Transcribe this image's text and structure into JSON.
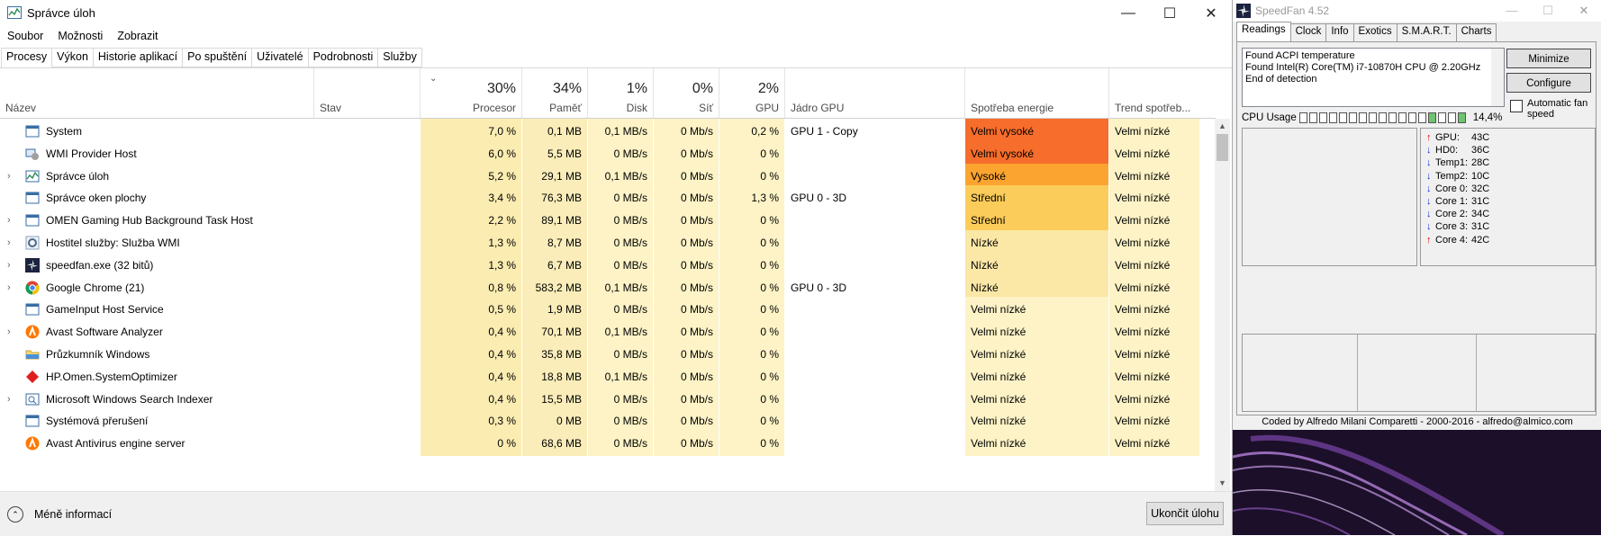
{
  "taskmanager": {
    "title": "Správce úloh",
    "menu": [
      "Soubor",
      "Možnosti",
      "Zobrazit"
    ],
    "tabs": [
      "Procesy",
      "Výkon",
      "Historie aplikací",
      "Po spuštění",
      "Uživatelé",
      "Podrobnosti",
      "Služby"
    ],
    "active_tab": "Procesy",
    "columns": {
      "name": "Název",
      "status": "Stav",
      "cpu": {
        "pct": "30%",
        "label": "Procesor"
      },
      "mem": {
        "pct": "34%",
        "label": "Paměť"
      },
      "disk": {
        "pct": "1%",
        "label": "Disk"
      },
      "net": {
        "pct": "0%",
        "label": "Síť"
      },
      "gpu": {
        "pct": "2%",
        "label": "GPU"
      },
      "gpu_engine": "Jádro GPU",
      "power": "Spotřeba energie",
      "power_trend": "Trend spotřeb..."
    },
    "rows": [
      {
        "expand": false,
        "icon": "system-icon",
        "name": "System",
        "cpu": "7,0 %",
        "mem": "0,1 MB",
        "disk": "0,1 MB/s",
        "net": "0 Mb/s",
        "gpu": "0,2 %",
        "engine": "GPU 1 - Copy",
        "power": "Velmi vysoké",
        "power_color": "#f76d2b",
        "trend": "Velmi nízké"
      },
      {
        "expand": false,
        "icon": "wmi-icon",
        "name": "WMI Provider Host",
        "cpu": "6,0 %",
        "mem": "5,5 MB",
        "disk": "0 MB/s",
        "net": "0 Mb/s",
        "gpu": "0 %",
        "engine": "",
        "power": "Velmi vysoké",
        "power_color": "#f76d2b",
        "trend": "Velmi nízké"
      },
      {
        "expand": true,
        "icon": "taskmanager-icon",
        "name": "Správce úloh",
        "cpu": "5,2 %",
        "mem": "29,1 MB",
        "disk": "0,1 MB/s",
        "net": "0 Mb/s",
        "gpu": "0 %",
        "engine": "",
        "power": "Vysoké",
        "power_color": "#fba430",
        "trend": "Velmi nízké"
      },
      {
        "expand": false,
        "icon": "window-icon",
        "name": "Správce oken plochy",
        "cpu": "3,4 %",
        "mem": "76,3 MB",
        "disk": "0 MB/s",
        "net": "0 Mb/s",
        "gpu": "1,3 %",
        "engine": "GPU 0 - 3D",
        "power": "Střední",
        "power_color": "#fccc5a",
        "trend": "Velmi nízké"
      },
      {
        "expand": true,
        "icon": "window-icon",
        "name": "OMEN Gaming Hub Background Task Host",
        "cpu": "2,2 %",
        "mem": "89,1 MB",
        "disk": "0 MB/s",
        "net": "0 Mb/s",
        "gpu": "0 %",
        "engine": "",
        "power": "Střední",
        "power_color": "#fccc5a",
        "trend": "Velmi nízké"
      },
      {
        "expand": true,
        "icon": "gear-icon",
        "name": "Hostitel služby: Služba WMI",
        "cpu": "1,3 %",
        "mem": "8,7 MB",
        "disk": "0 MB/s",
        "net": "0 Mb/s",
        "gpu": "0 %",
        "engine": "",
        "power": "Nízké",
        "power_color": "#fbe7a6",
        "trend": "Velmi nízké"
      },
      {
        "expand": true,
        "icon": "speedfan-icon",
        "name": "speedfan.exe (32 bitů)",
        "cpu": "1,3 %",
        "mem": "6,7 MB",
        "disk": "0 MB/s",
        "net": "0 Mb/s",
        "gpu": "0 %",
        "engine": "",
        "power": "Nízké",
        "power_color": "#fbe7a6",
        "trend": "Velmi nízké"
      },
      {
        "expand": true,
        "icon": "chrome-icon",
        "name": "Google Chrome (21)",
        "cpu": "0,8 %",
        "mem": "583,2 MB",
        "disk": "0,1 MB/s",
        "net": "0 Mb/s",
        "gpu": "0 %",
        "engine": "GPU 0 - 3D",
        "power": "Nízké",
        "power_color": "#fbe7a6",
        "trend": "Velmi nízké"
      },
      {
        "expand": false,
        "icon": "window-icon",
        "name": "GameInput Host Service",
        "cpu": "0,5 %",
        "mem": "1,9 MB",
        "disk": "0 MB/s",
        "net": "0 Mb/s",
        "gpu": "0 %",
        "engine": "",
        "power": "Velmi nízké",
        "power_color": "#fdf3c6",
        "trend": "Velmi nízké"
      },
      {
        "expand": true,
        "icon": "avast-icon",
        "name": "Avast Software Analyzer",
        "cpu": "0,4 %",
        "mem": "70,1 MB",
        "disk": "0,1 MB/s",
        "net": "0 Mb/s",
        "gpu": "0 %",
        "engine": "",
        "power": "Velmi nízké",
        "power_color": "#fdf3c6",
        "trend": "Velmi nízké"
      },
      {
        "expand": false,
        "icon": "folder-icon",
        "name": "Průzkumník Windows",
        "cpu": "0,4 %",
        "mem": "35,8 MB",
        "disk": "0 MB/s",
        "net": "0 Mb/s",
        "gpu": "0 %",
        "engine": "",
        "power": "Velmi nízké",
        "power_color": "#fdf3c6",
        "trend": "Velmi nízké"
      },
      {
        "expand": false,
        "icon": "omen-icon",
        "name": "HP.Omen.SystemOptimizer",
        "cpu": "0,4 %",
        "mem": "18,8 MB",
        "disk": "0,1 MB/s",
        "net": "0 Mb/s",
        "gpu": "0 %",
        "engine": "",
        "power": "Velmi nízké",
        "power_color": "#fdf3c6",
        "trend": "Velmi nízké"
      },
      {
        "expand": true,
        "icon": "search-indexer-icon",
        "name": "Microsoft Windows Search Indexer",
        "cpu": "0,4 %",
        "mem": "15,5 MB",
        "disk": "0 MB/s",
        "net": "0 Mb/s",
        "gpu": "0 %",
        "engine": "",
        "power": "Velmi nízké",
        "power_color": "#fdf3c6",
        "trend": "Velmi nízké"
      },
      {
        "expand": false,
        "icon": "window-icon",
        "name": "Systémová přerušení",
        "cpu": "0,3 %",
        "mem": "0 MB",
        "disk": "0 MB/s",
        "net": "0 Mb/s",
        "gpu": "0 %",
        "engine": "",
        "power": "Velmi nízké",
        "power_color": "#fdf3c6",
        "trend": "Velmi nízké"
      },
      {
        "expand": false,
        "icon": "avast-icon",
        "name": "Avast Antivirus engine server",
        "cpu": "0 %",
        "mem": "68,6 MB",
        "disk": "0 MB/s",
        "net": "0 Mb/s",
        "gpu": "0 %",
        "engine": "",
        "power": "Velmi nízké",
        "power_color": "#fdf3c6",
        "trend": "Velmi nízké"
      }
    ],
    "fewer_details": "Méně informací",
    "end_task": "Ukončit úlohu"
  },
  "speedfan": {
    "title": "SpeedFan 4.52",
    "tabs": [
      "Readings",
      "Clock",
      "Info",
      "Exotics",
      "S.M.A.R.T.",
      "Charts"
    ],
    "active_tab": "Readings",
    "log": [
      "Found ACPI temperature",
      "Found Intel(R) Core(TM) i7-10870H CPU @ 2.20GHz",
      "End of detection"
    ],
    "minimize": "Minimize",
    "configure": "Configure",
    "auto_fan": "Automatic fan speed",
    "cpu_usage_label": "CPU Usage",
    "cpu_usage_value": "14,4%",
    "temps": [
      {
        "dir": "up",
        "name": "GPU:",
        "value": "43C"
      },
      {
        "dir": "down",
        "name": "HD0:",
        "value": "36C"
      },
      {
        "dir": "down",
        "name": "Temp1:",
        "value": "28C"
      },
      {
        "dir": "down",
        "name": "Temp2:",
        "value": "10C"
      },
      {
        "dir": "down",
        "name": "Core 0:",
        "value": "32C"
      },
      {
        "dir": "down",
        "name": "Core 1:",
        "value": "31C"
      },
      {
        "dir": "down",
        "name": "Core 2:",
        "value": "34C"
      },
      {
        "dir": "down",
        "name": "Core 3:",
        "value": "31C"
      },
      {
        "dir": "up",
        "name": "Core 4:",
        "value": "42C"
      }
    ],
    "footer": "Coded by Alfredo Milani Comparetti - 2000-2016 - alfredo@almico.com"
  }
}
